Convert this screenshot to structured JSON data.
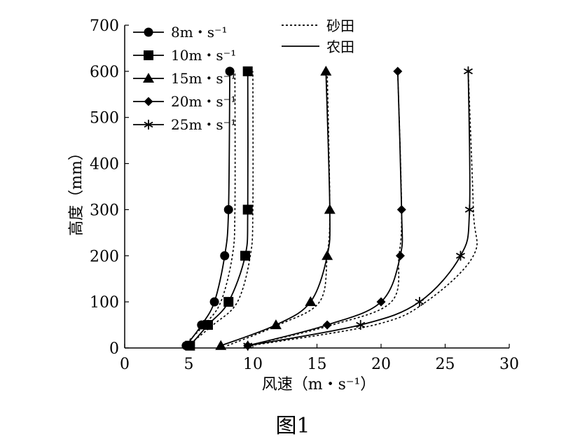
{
  "chart_data": {
    "type": "line",
    "xlabel": "风速（m・s⁻¹）",
    "ylabel": "高度（mm）",
    "xlim": [
      0,
      30
    ],
    "ylim": [
      0,
      700
    ],
    "xticks": [
      "0",
      "5",
      "10",
      "15",
      "20",
      "25",
      "30"
    ],
    "yticks": [
      "0",
      "100",
      "200",
      "300",
      "400",
      "500",
      "600",
      "700"
    ],
    "grid": false,
    "legend_placement": "top-left",
    "line_styles": [
      {
        "label": "砂田",
        "style": "dotted"
      },
      {
        "label": "农田",
        "style": "solid"
      }
    ],
    "series": [
      {
        "name": "8m・s⁻¹",
        "marker": "circle",
        "farmland": {
          "x": [
            4.8,
            6.0,
            7.0,
            7.8,
            8.1,
            8.2
          ],
          "y": [
            5,
            50,
            100,
            200,
            300,
            600
          ]
        },
        "sandfield": {
          "x": [
            4.6,
            6.2,
            7.5,
            8.4,
            8.6,
            8.6
          ],
          "y": [
            5,
            50,
            100,
            200,
            300,
            600
          ]
        }
      },
      {
        "name": "10m・s⁻¹",
        "marker": "square",
        "farmland": {
          "x": [
            5.1,
            6.5,
            8.1,
            9.4,
            9.6,
            9.6
          ],
          "y": [
            5,
            50,
            100,
            200,
            300,
            600
          ]
        },
        "sandfield": {
          "x": [
            4.9,
            6.9,
            8.8,
            9.8,
            10.0,
            10.0
          ],
          "y": [
            5,
            50,
            100,
            200,
            300,
            600
          ]
        }
      },
      {
        "name": "15m・s⁻¹",
        "marker": "triangle",
        "farmland": {
          "x": [
            7.5,
            11.8,
            14.5,
            15.8,
            16.0,
            15.7
          ],
          "y": [
            5,
            50,
            100,
            200,
            300,
            600
          ]
        },
        "sandfield": {
          "x": [
            8.0,
            12.0,
            15.2,
            15.8,
            16.0,
            15.8
          ],
          "y": [
            5,
            50,
            100,
            200,
            300,
            600
          ]
        }
      },
      {
        "name": "20m・s⁻¹",
        "marker": "diamond",
        "farmland": {
          "x": [
            9.6,
            15.8,
            20.0,
            21.5,
            21.6,
            21.3
          ],
          "y": [
            5,
            50,
            100,
            200,
            300,
            600
          ]
        },
        "sandfield": {
          "x": [
            9.6,
            16.2,
            20.8,
            21.4,
            21.6,
            21.3
          ],
          "y": [
            5,
            50,
            100,
            200,
            300,
            600
          ]
        }
      },
      {
        "name": "25m・s⁻¹",
        "marker": "star",
        "farmland": {
          "x": [
            9.6,
            18.4,
            23.0,
            26.2,
            26.9,
            26.8
          ],
          "y": [
            5,
            50,
            100,
            200,
            300,
            600
          ]
        },
        "sandfield": {
          "x": [
            9.8,
            19.5,
            23.5,
            27.2,
            27.2,
            26.8
          ],
          "y": [
            5,
            50,
            100,
            200,
            300,
            600
          ]
        }
      }
    ]
  },
  "caption": "图1"
}
